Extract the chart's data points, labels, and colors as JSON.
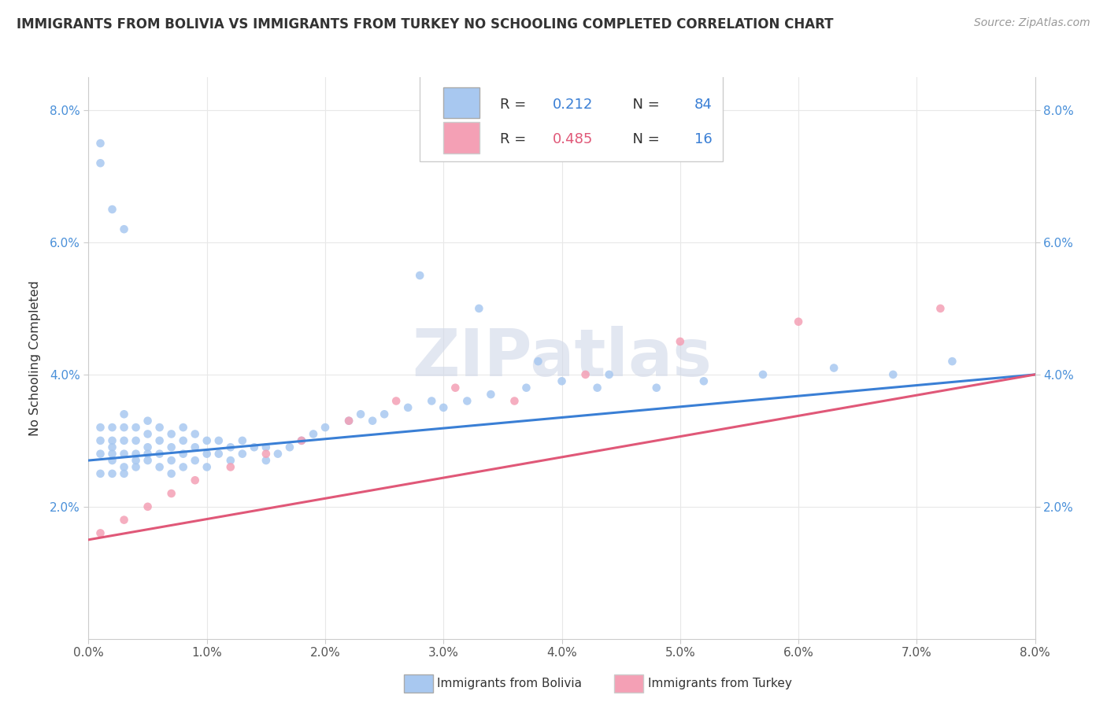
{
  "title": "IMMIGRANTS FROM BOLIVIA VS IMMIGRANTS FROM TURKEY NO SCHOOLING COMPLETED CORRELATION CHART",
  "source": "Source: ZipAtlas.com",
  "ylabel": "No Schooling Completed",
  "xlim": [
    0.0,
    0.08
  ],
  "ylim": [
    0.0,
    0.085
  ],
  "bolivia_color": "#a8c8f0",
  "turkey_color": "#f4a0b5",
  "bolivia_line_color": "#3a7fd5",
  "turkey_line_color": "#e05878",
  "R_bolivia": 0.212,
  "N_bolivia": 84,
  "R_turkey": 0.485,
  "N_turkey": 16,
  "legend_label_bolivia": "Immigrants from Bolivia",
  "legend_label_turkey": "Immigrants from Turkey",
  "watermark": "ZIPatlas",
  "grid_color": "#e8e8e8",
  "text_color": "#333333",
  "axis_label_color": "#4a90d9",
  "bolivia_x": [
    0.001,
    0.001,
    0.001,
    0.001,
    0.002,
    0.002,
    0.002,
    0.002,
    0.002,
    0.002,
    0.003,
    0.003,
    0.003,
    0.003,
    0.003,
    0.003,
    0.004,
    0.004,
    0.004,
    0.004,
    0.004,
    0.005,
    0.005,
    0.005,
    0.005,
    0.005,
    0.006,
    0.006,
    0.006,
    0.006,
    0.007,
    0.007,
    0.007,
    0.007,
    0.008,
    0.008,
    0.008,
    0.008,
    0.009,
    0.009,
    0.009,
    0.01,
    0.01,
    0.01,
    0.011,
    0.011,
    0.012,
    0.012,
    0.013,
    0.013,
    0.014,
    0.015,
    0.015,
    0.016,
    0.017,
    0.018,
    0.019,
    0.02,
    0.022,
    0.023,
    0.024,
    0.025,
    0.027,
    0.029,
    0.03,
    0.032,
    0.034,
    0.037,
    0.04,
    0.044,
    0.048,
    0.052,
    0.057,
    0.063,
    0.068,
    0.073,
    0.028,
    0.033,
    0.038,
    0.043,
    0.001,
    0.001,
    0.002,
    0.003
  ],
  "bolivia_y": [
    0.025,
    0.028,
    0.03,
    0.032,
    0.025,
    0.027,
    0.028,
    0.029,
    0.03,
    0.032,
    0.025,
    0.026,
    0.028,
    0.03,
    0.032,
    0.034,
    0.026,
    0.027,
    0.028,
    0.03,
    0.032,
    0.027,
    0.028,
    0.029,
    0.031,
    0.033,
    0.026,
    0.028,
    0.03,
    0.032,
    0.025,
    0.027,
    0.029,
    0.031,
    0.026,
    0.028,
    0.03,
    0.032,
    0.027,
    0.029,
    0.031,
    0.026,
    0.028,
    0.03,
    0.028,
    0.03,
    0.027,
    0.029,
    0.028,
    0.03,
    0.029,
    0.027,
    0.029,
    0.028,
    0.029,
    0.03,
    0.031,
    0.032,
    0.033,
    0.034,
    0.033,
    0.034,
    0.035,
    0.036,
    0.035,
    0.036,
    0.037,
    0.038,
    0.039,
    0.04,
    0.038,
    0.039,
    0.04,
    0.041,
    0.04,
    0.042,
    0.055,
    0.05,
    0.042,
    0.038,
    0.075,
    0.072,
    0.065,
    0.062
  ],
  "turkey_x": [
    0.001,
    0.003,
    0.005,
    0.007,
    0.009,
    0.012,
    0.015,
    0.018,
    0.022,
    0.026,
    0.031,
    0.036,
    0.042,
    0.05,
    0.06,
    0.072
  ],
  "turkey_y": [
    0.016,
    0.018,
    0.02,
    0.022,
    0.024,
    0.026,
    0.028,
    0.03,
    0.033,
    0.036,
    0.038,
    0.036,
    0.04,
    0.045,
    0.048,
    0.05
  ]
}
